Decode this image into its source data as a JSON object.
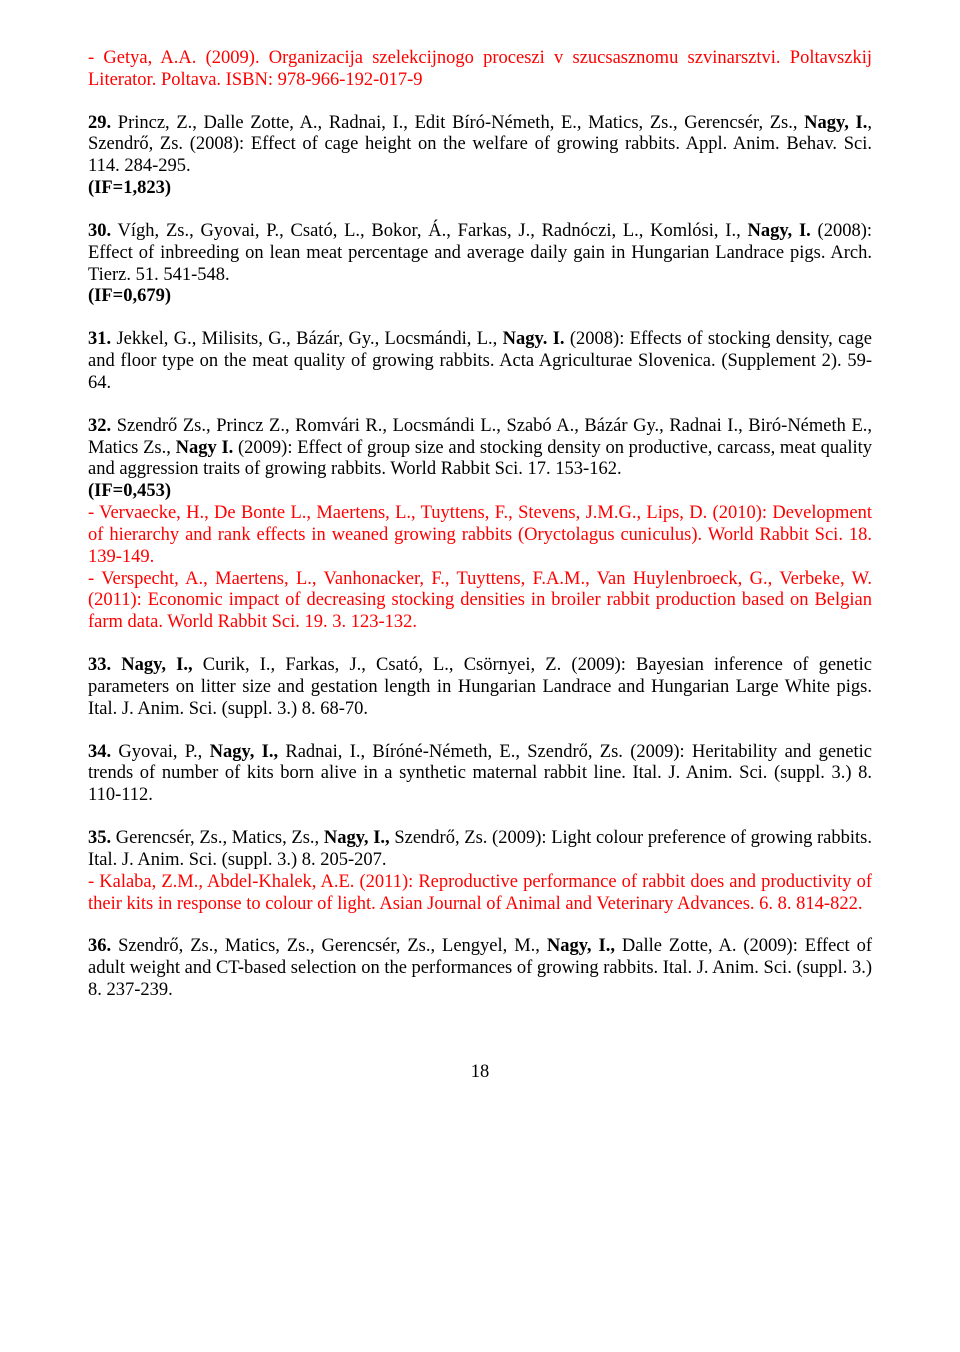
{
  "colors": {
    "text": "#000000",
    "cite": "#ff0000",
    "bg": "#ffffff"
  },
  "font": {
    "family": "Times New Roman",
    "size_pt": 14,
    "line_height": 1.18
  },
  "e28c": {
    "prefix": "- ",
    "auth": "Getya, A.A.",
    "rest": " (2009). Organizacija szelekcijnogo proceszi v szucsasznomu szvinarsztvi. Poltavszkij Literator. Poltava. ISBN: 978-966-192-017-9"
  },
  "e29": {
    "num": "29.",
    "a1": " Princz, Z., Dalle Zotte, A., Radnai, I., Edit Bíró-Németh, E., Matics, Zs., Gerencsér, Zs., ",
    "bold1": "Nagy, I.",
    "a2": ", Szendrő, Zs. (2008): Effect of cage height on the welfare of growing rabbits. Appl. Anim. Behav. Sci. 114. 284-295.",
    "if": "(IF=1,823)"
  },
  "e30": {
    "num": "30.",
    "a1": " Vígh, Zs., Gyovai, P., Csató, L., Bokor, Á., Farkas, J., Radnóczi, L., Komlósi, I., ",
    "bold1": "Nagy, I.",
    "a2": " (2008): Effect of inbreeding on lean meat percentage and average daily gain in Hungarian Landrace pigs. Arch. Tierz. 51. 541-548.",
    "if": "(IF=0,679)"
  },
  "e31": {
    "num": "31.",
    "a1": " Jekkel, G., Milisits, G., Bázár, Gy., Locsmándi, L., ",
    "bold1": "Nagy. I.",
    "a2": " (2008): Effects of stocking density, cage and floor type on the meat quality of growing rabbits. Acta Agriculturae Slovenica. (Supplement 2). 59-64."
  },
  "e32": {
    "num": "32.",
    "a1": " Szendrő Zs., Princz Z., Romvári R., Locsmándi L., Szabó A., Bázár Gy., Radnai I., Biró-Németh E., Matics Zs., ",
    "bold1": "Nagy I.",
    "a2": " (2009): Effect of group size and stocking density on productive, carcass, meat quality and aggression traits of growing rabbits. World Rabbit Sci. 17. 153-162.",
    "if": "(IF=0,453)"
  },
  "e32c1": {
    "prefix": "- ",
    "auth": "Vervaecke, H., De Bonte L., Maertens, L., Tuyttens, F., Stevens, J.M.G., Lips, D.",
    "rest": " (2010): Development of hierarchy and rank effects in weaned growing rabbits (Oryctolagus cuniculus). World Rabbit Sci. 18. 139-149."
  },
  "e32c2": {
    "prefix": "- ",
    "auth": "Verspecht, A., Maertens, L., Vanhonacker, F., Tuyttens, F.A.M., Van Huylenbroeck, G., Verbeke, W.",
    "rest": " (2011): Economic impact of decreasing stocking densities in broiler rabbit production based on Belgian farm data. World Rabbit Sci. 19. 3. 123-132."
  },
  "e33": {
    "num": "33.",
    "bold1": " Nagy, I.,",
    "a1": " Curik, I., Farkas, J., Csató, L., Csörnyei, Z. (2009): Bayesian inference of genetic parameters on litter size and gestation length in Hungarian Landrace and Hungarian Large White pigs. Ital. J. Anim. Sci. (suppl. 3.) 8. 68-70."
  },
  "e34": {
    "num": "34.",
    "a1": " Gyovai, P., ",
    "bold1": "Nagy, I.,",
    "a2": " Radnai, I., Bíróné-Németh, E., Szendrő, Zs. (2009): Heritability and genetic trends of number of kits born alive in a synthetic maternal rabbit line. Ital. J. Anim. Sci. (suppl. 3.) 8. 110-112."
  },
  "e35": {
    "num": "35.",
    "a1": " Gerencsér, Zs., Matics, Zs., ",
    "bold1": "Nagy, I.,",
    "a2": " Szendrő, Zs. (2009): Light colour preference of growing rabbits. Ital. J. Anim. Sci. (suppl. 3.) 8. 205-207."
  },
  "e35c1": {
    "prefix": "- ",
    "auth": "Kalaba, Z.M., Abdel-Khalek, A.E.",
    "rest": " (2011): Reproductive performance of rabbit does and productivity of their kits in response to colour of light. Asian Journal of Animal and Veterinary Advances. 6. 8. 814-822."
  },
  "e36": {
    "num": "36.",
    "a1": " Szendrő, Zs., Matics, Zs., Gerencsér, Zs., Lengyel, M., ",
    "bold1": "Nagy, I.,",
    "a2": " Dalle Zotte, A. (2009): Effect of adult weight and CT-based selection on the performances of growing rabbits. Ital. J. Anim. Sci. (suppl. 3.) 8. 237-239."
  },
  "page": "18"
}
